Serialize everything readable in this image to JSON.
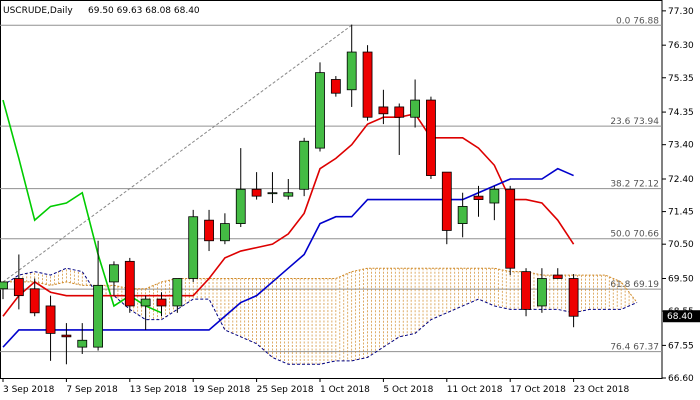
{
  "chart_data": {
    "type": "candlestick",
    "symbol": "USCRUDE,Daily",
    "ohlc_header": "69.50 69.63 68.08 68.40",
    "current_price_label": "68.40",
    "ylim": [
      66.6,
      77.5
    ],
    "y_ticks": [
      {
        "label": "77.30",
        "value": 77.3
      },
      {
        "label": "76.30",
        "value": 76.3
      },
      {
        "label": "75.35",
        "value": 75.35
      },
      {
        "label": "74.35",
        "value": 74.35
      },
      {
        "label": "73.40",
        "value": 73.4
      },
      {
        "label": "72.40",
        "value": 72.4
      },
      {
        "label": "71.45",
        "value": 71.45
      },
      {
        "label": "70.50",
        "value": 70.5
      },
      {
        "label": "69.50",
        "value": 69.5
      },
      {
        "label": "68.55",
        "value": 68.55
      },
      {
        "label": "67.55",
        "value": 67.55
      },
      {
        "label": "66.60",
        "value": 66.6
      }
    ],
    "x_ticks": [
      {
        "label": "3 Sep 2018",
        "index": 0
      },
      {
        "label": "7 Sep 2018",
        "index": 4
      },
      {
        "label": "13 Sep 2018",
        "index": 8
      },
      {
        "label": "19 Sep 2018",
        "index": 12
      },
      {
        "label": "25 Sep 2018",
        "index": 16
      },
      {
        "label": "1 Oct 2018",
        "index": 20
      },
      {
        "label": "5 Oct 2018",
        "index": 24
      },
      {
        "label": "11 Oct 2018",
        "index": 28
      },
      {
        "label": "17 Oct 2018",
        "index": 32
      },
      {
        "label": "23 Oct 2018",
        "index": 36
      }
    ],
    "candles": [
      {
        "o": 69.2,
        "h": 69.4,
        "l": 68.9,
        "c": 69.4
      },
      {
        "o": 69.5,
        "h": 70.2,
        "l": 68.6,
        "c": 69.0
      },
      {
        "o": 69.2,
        "h": 69.5,
        "l": 68.4,
        "c": 68.5
      },
      {
        "o": 68.7,
        "h": 69.0,
        "l": 67.1,
        "c": 67.9
      },
      {
        "o": 67.85,
        "h": 68.2,
        "l": 67.0,
        "c": 67.8
      },
      {
        "o": 67.5,
        "h": 68.2,
        "l": 67.3,
        "c": 67.7
      },
      {
        "o": 67.5,
        "h": 70.6,
        "l": 67.4,
        "c": 69.3
      },
      {
        "o": 69.4,
        "h": 70.0,
        "l": 69.0,
        "c": 69.9
      },
      {
        "o": 70.0,
        "h": 70.1,
        "l": 68.5,
        "c": 68.7
      },
      {
        "o": 68.7,
        "h": 69.0,
        "l": 68.0,
        "c": 68.9
      },
      {
        "o": 68.9,
        "h": 69.1,
        "l": 68.4,
        "c": 68.7
      },
      {
        "o": 68.7,
        "h": 69.5,
        "l": 68.5,
        "c": 69.5
      },
      {
        "o": 69.5,
        "h": 71.5,
        "l": 69.4,
        "c": 71.3
      },
      {
        "o": 71.2,
        "h": 71.5,
        "l": 70.3,
        "c": 70.6
      },
      {
        "o": 70.6,
        "h": 71.4,
        "l": 70.5,
        "c": 71.1
      },
      {
        "o": 71.1,
        "h": 73.3,
        "l": 71.0,
        "c": 72.1
      },
      {
        "o": 72.1,
        "h": 72.6,
        "l": 71.8,
        "c": 71.9
      },
      {
        "o": 72.0,
        "h": 72.6,
        "l": 71.7,
        "c": 72.0
      },
      {
        "o": 71.9,
        "h": 72.4,
        "l": 71.8,
        "c": 72.0
      },
      {
        "o": 72.1,
        "h": 73.6,
        "l": 71.9,
        "c": 73.5
      },
      {
        "o": 73.3,
        "h": 75.8,
        "l": 73.2,
        "c": 75.5
      },
      {
        "o": 75.3,
        "h": 75.4,
        "l": 74.8,
        "c": 74.9
      },
      {
        "o": 75.0,
        "h": 76.9,
        "l": 74.5,
        "c": 76.1
      },
      {
        "o": 76.1,
        "h": 76.3,
        "l": 74.1,
        "c": 74.2
      },
      {
        "o": 74.5,
        "h": 75.0,
        "l": 74.0,
        "c": 74.3
      },
      {
        "o": 74.5,
        "h": 74.6,
        "l": 73.1,
        "c": 74.2
      },
      {
        "o": 74.2,
        "h": 75.3,
        "l": 73.9,
        "c": 74.7
      },
      {
        "o": 74.7,
        "h": 74.8,
        "l": 72.4,
        "c": 72.5
      },
      {
        "o": 72.6,
        "h": 72.6,
        "l": 70.5,
        "c": 70.9
      },
      {
        "o": 71.1,
        "h": 72.0,
        "l": 70.7,
        "c": 71.6
      },
      {
        "o": 71.9,
        "h": 72.2,
        "l": 71.3,
        "c": 71.8
      },
      {
        "o": 71.7,
        "h": 72.2,
        "l": 71.2,
        "c": 72.1
      },
      {
        "o": 72.1,
        "h": 72.2,
        "l": 69.6,
        "c": 69.8
      },
      {
        "o": 69.7,
        "h": 69.8,
        "l": 68.4,
        "c": 68.6
      },
      {
        "o": 68.7,
        "h": 69.8,
        "l": 68.5,
        "c": 69.5
      },
      {
        "o": 69.6,
        "h": 69.8,
        "l": 69.5,
        "c": 69.5
      },
      {
        "o": 69.5,
        "h": 69.63,
        "l": 68.08,
        "c": 68.4
      }
    ],
    "series": [
      {
        "name": "",
        "color": "#00cc00",
        "values": [
          74.7,
          73.0,
          71.2,
          71.6,
          71.7,
          72.0,
          70.2,
          68.7,
          69.0,
          68.7,
          68.5,
          null,
          null,
          null,
          null,
          null,
          null,
          null,
          null,
          null,
          null,
          null,
          null,
          null,
          null,
          null,
          null,
          null,
          null,
          null,
          null,
          null,
          null,
          null,
          null,
          null,
          null
        ]
      },
      {
        "name": "",
        "color": "#dd0000",
        "values": [
          68.4,
          69.0,
          69.4,
          69.1,
          69.0,
          69.0,
          69.0,
          69.0,
          69.0,
          69.0,
          69.0,
          69.0,
          69.0,
          69.5,
          70.1,
          70.3,
          70.4,
          70.5,
          70.8,
          71.4,
          72.7,
          73.0,
          73.4,
          74.0,
          74.2,
          74.2,
          74.3,
          73.6,
          73.6,
          73.6,
          73.3,
          72.8,
          71.8,
          71.8,
          71.7,
          71.2,
          70.5
        ]
      },
      {
        "name": "",
        "color": "#0000cc",
        "values": [
          67.5,
          68.0,
          68.0,
          68.0,
          68.0,
          68.0,
          68.0,
          68.0,
          68.0,
          68.0,
          68.0,
          68.0,
          68.0,
          68.0,
          68.4,
          68.8,
          69.0,
          69.4,
          69.8,
          70.2,
          71.1,
          71.3,
          71.3,
          71.8,
          71.8,
          71.8,
          71.8,
          71.8,
          71.8,
          71.8,
          72.0,
          72.2,
          72.4,
          72.4,
          72.4,
          72.7,
          72.5
        ]
      }
    ],
    "cloud_upper": [
      69.4,
      69.4,
      69.4,
      69.3,
      69.4,
      69.3,
      69.3,
      69.3,
      69.2,
      69.2,
      69.4,
      69.5,
      69.5,
      69.5,
      69.5,
      69.5,
      69.5,
      69.5,
      69.5,
      69.5,
      69.5,
      69.5,
      69.7,
      69.8,
      69.8,
      69.8,
      69.8,
      69.8,
      69.8,
      69.8,
      69.8,
      69.8,
      69.7,
      69.7,
      69.6,
      69.6,
      69.6,
      69.6,
      69.6,
      69.4,
      68.8
    ],
    "cloud_lower": [
      69.3,
      69.6,
      69.7,
      69.6,
      69.8,
      69.7,
      69.0,
      69.0,
      68.6,
      68.3,
      68.3,
      68.6,
      68.9,
      68.9,
      68.0,
      67.8,
      67.6,
      67.2,
      67.0,
      67.0,
      67.0,
      67.1,
      67.1,
      67.2,
      67.5,
      67.8,
      67.9,
      68.3,
      68.5,
      68.7,
      68.9,
      68.7,
      68.6,
      68.6,
      68.6,
      68.6,
      68.5,
      68.6,
      68.6,
      68.6,
      68.8
    ],
    "fibonacci": [
      {
        "label": "0.0 76.88",
        "value": 76.88
      },
      {
        "label": "23.6 73.94",
        "value": 73.94
      },
      {
        "label": "38.2 72.12",
        "value": 72.12
      },
      {
        "label": "50.0 70.66",
        "value": 70.66
      },
      {
        "label": "61.8 69.19",
        "value": 69.19
      },
      {
        "label": "76.4 67.37",
        "value": 67.37
      }
    ],
    "trend_line": {
      "from_index": 0,
      "from_value": 69.4,
      "to_index": 22,
      "to_value": 76.88
    },
    "colors": {
      "bull": "#44bb44",
      "bear": "#ee0000",
      "cloud": "#d08a28",
      "fibo_line": "#909090",
      "current_price_bg": "#000000"
    }
  }
}
